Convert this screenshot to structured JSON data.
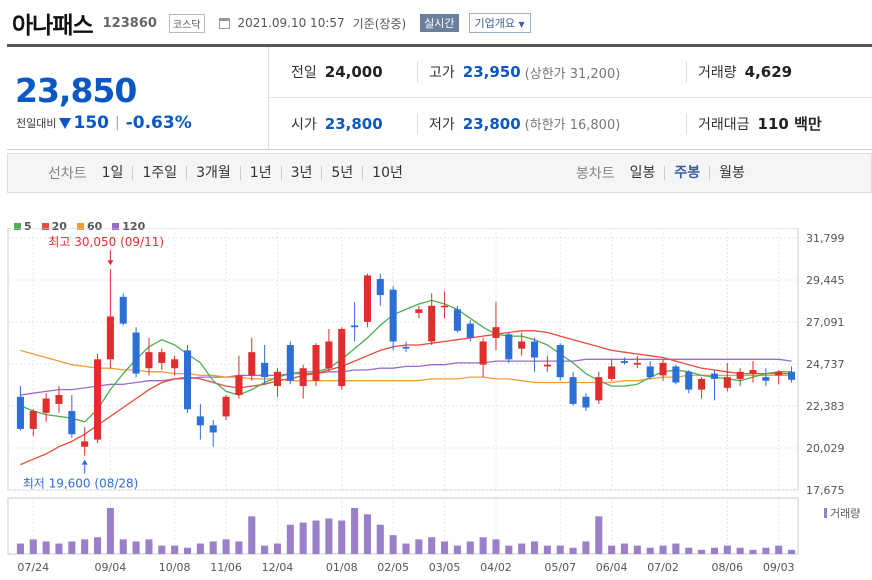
{
  "header": {
    "name": "아나패스",
    "code": "123860",
    "market": "코스닥",
    "datetime": "2021.09.10 10:57",
    "basis": "기준(장중)",
    "realtime_label": "실시간",
    "company_label": "기업개요"
  },
  "quote": {
    "price": "23,850",
    "change_label": "전일대비",
    "change": "150",
    "change_pct": "-0.63%",
    "prev_label": "전일",
    "prev": "24,000",
    "high_label": "고가",
    "high": "23,950",
    "upper_limit": "(상한가 31,200)",
    "volume_label": "거래량",
    "volume": "4,629",
    "open_label": "시가",
    "open": "23,800",
    "low_label": "저가",
    "low": "23,800",
    "lower_limit": "(하한가 16,800)",
    "amount_label": "거래대금",
    "amount": "110 백만"
  },
  "tabs": {
    "line_label": "선차트",
    "line": [
      "1일",
      "1주일",
      "3개월",
      "1년",
      "3년",
      "5년",
      "10년"
    ],
    "candle_label": "봉차트",
    "candle": [
      "일봉",
      "주봉",
      "월봉"
    ],
    "active_candle": 1
  },
  "legend": [
    {
      "name": "5",
      "color": "#4caf50"
    },
    {
      "name": "20",
      "color": "#e74c3c"
    },
    {
      "name": "60",
      "color": "#f39c3c"
    },
    {
      "name": "120",
      "color": "#9b6bc9"
    }
  ],
  "chart_data": {
    "type": "candlestick",
    "y_ticks": [
      17675,
      20029,
      22383,
      24737,
      27091,
      29445,
      31799
    ],
    "y_tick_labels": [
      "17,675",
      "20,029",
      "22,383",
      "24,737",
      "27,091",
      "29,445",
      "31,799"
    ],
    "ylim": [
      17675,
      31799
    ],
    "x_labels": [
      {
        "label": "07/24",
        "index": 1
      },
      {
        "label": "09/04",
        "index": 7
      },
      {
        "label": "10/08",
        "index": 12
      },
      {
        "label": "11/06",
        "index": 16
      },
      {
        "label": "12/04",
        "index": 20
      },
      {
        "label": "01/08",
        "index": 25
      },
      {
        "label": "02/05",
        "index": 29
      },
      {
        "label": "03/05",
        "index": 33
      },
      {
        "label": "04/02",
        "index": 37
      },
      {
        "label": "05/07",
        "index": 42
      },
      {
        "label": "06/04",
        "index": 46
      },
      {
        "label": "07/02",
        "index": 50
      },
      {
        "label": "08/06",
        "index": 55
      },
      {
        "label": "09/03",
        "index": 59
      }
    ],
    "annotations": {
      "max_label": "최고 30,050 (09/11)",
      "max_value": 30050,
      "max_index": 7,
      "min_label": "최저 19,600 (08/28)",
      "min_value": 19600,
      "min_index": 5
    },
    "volume_label": "거래량",
    "candles": [
      {
        "o": 22900,
        "h": 23500,
        "l": 21000,
        "c": 21100
      },
      {
        "o": 21100,
        "h": 22200,
        "l": 20700,
        "c": 22100
      },
      {
        "o": 22000,
        "h": 23100,
        "l": 21500,
        "c": 22800
      },
      {
        "o": 22500,
        "h": 23500,
        "l": 22000,
        "c": 23000
      },
      {
        "o": 22100,
        "h": 23000,
        "l": 20600,
        "c": 20800
      },
      {
        "o": 20100,
        "h": 21200,
        "l": 19600,
        "c": 20400
      },
      {
        "o": 20500,
        "h": 25300,
        "l": 20300,
        "c": 25000
      },
      {
        "o": 25000,
        "h": 30050,
        "l": 24500,
        "c": 27400
      },
      {
        "o": 28500,
        "h": 28700,
        "l": 26900,
        "c": 27000
      },
      {
        "o": 26500,
        "h": 26800,
        "l": 24000,
        "c": 24200
      },
      {
        "o": 24500,
        "h": 26200,
        "l": 24100,
        "c": 25400
      },
      {
        "o": 24800,
        "h": 25600,
        "l": 24400,
        "c": 25400
      },
      {
        "o": 24500,
        "h": 25200,
        "l": 24100,
        "c": 25000
      },
      {
        "o": 25500,
        "h": 25800,
        "l": 22000,
        "c": 22200
      },
      {
        "o": 21800,
        "h": 22500,
        "l": 20500,
        "c": 21300
      },
      {
        "o": 21300,
        "h": 21600,
        "l": 20100,
        "c": 20900
      },
      {
        "o": 21800,
        "h": 23000,
        "l": 21600,
        "c": 22900
      },
      {
        "o": 23000,
        "h": 25200,
        "l": 22800,
        "c": 24100
      },
      {
        "o": 24100,
        "h": 26200,
        "l": 23800,
        "c": 25400
      },
      {
        "o": 24800,
        "h": 25800,
        "l": 23600,
        "c": 24000
      },
      {
        "o": 23500,
        "h": 24500,
        "l": 22900,
        "c": 24300
      },
      {
        "o": 25800,
        "h": 26000,
        "l": 23600,
        "c": 23800
      },
      {
        "o": 23500,
        "h": 24700,
        "l": 22800,
        "c": 24500
      },
      {
        "o": 23800,
        "h": 25900,
        "l": 23500,
        "c": 25800
      },
      {
        "o": 24500,
        "h": 26700,
        "l": 24300,
        "c": 26000
      },
      {
        "o": 23500,
        "h": 26800,
        "l": 23300,
        "c": 26700
      },
      {
        "o": 26900,
        "h": 28200,
        "l": 26000,
        "c": 26800
      },
      {
        "o": 27100,
        "h": 29800,
        "l": 26800,
        "c": 29700
      },
      {
        "o": 29500,
        "h": 29800,
        "l": 28000,
        "c": 28600
      },
      {
        "o": 28900,
        "h": 29100,
        "l": 25500,
        "c": 26000
      },
      {
        "o": 25700,
        "h": 26000,
        "l": 25400,
        "c": 25600
      },
      {
        "o": 27600,
        "h": 28000,
        "l": 27300,
        "c": 27800
      },
      {
        "o": 26000,
        "h": 28700,
        "l": 25800,
        "c": 28000
      },
      {
        "o": 28000,
        "h": 28800,
        "l": 27300,
        "c": 28000
      },
      {
        "o": 27800,
        "h": 28000,
        "l": 26500,
        "c": 26600
      },
      {
        "o": 27000,
        "h": 27200,
        "l": 26000,
        "c": 26200
      },
      {
        "o": 24700,
        "h": 26200,
        "l": 24000,
        "c": 26000
      },
      {
        "o": 26200,
        "h": 28200,
        "l": 25500,
        "c": 26800
      },
      {
        "o": 26400,
        "h": 26500,
        "l": 24800,
        "c": 25000
      },
      {
        "o": 25600,
        "h": 26500,
        "l": 25200,
        "c": 26000
      },
      {
        "o": 26000,
        "h": 26200,
        "l": 24300,
        "c": 25100
      },
      {
        "o": 24600,
        "h": 25200,
        "l": 24300,
        "c": 24700
      },
      {
        "o": 25800,
        "h": 25900,
        "l": 23800,
        "c": 24000
      },
      {
        "o": 24000,
        "h": 24300,
        "l": 22400,
        "c": 22500
      },
      {
        "o": 22900,
        "h": 23100,
        "l": 22100,
        "c": 22300
      },
      {
        "o": 22700,
        "h": 24300,
        "l": 22500,
        "c": 24000
      },
      {
        "o": 23900,
        "h": 25000,
        "l": 23800,
        "c": 24600
      },
      {
        "o": 24900,
        "h": 25100,
        "l": 24700,
        "c": 24800
      },
      {
        "o": 24700,
        "h": 25200,
        "l": 24500,
        "c": 24800
      },
      {
        "o": 24600,
        "h": 24900,
        "l": 23900,
        "c": 24000
      },
      {
        "o": 24100,
        "h": 25000,
        "l": 23800,
        "c": 24800
      },
      {
        "o": 24600,
        "h": 24700,
        "l": 23600,
        "c": 23700
      },
      {
        "o": 24300,
        "h": 24400,
        "l": 23100,
        "c": 23300
      },
      {
        "o": 23300,
        "h": 24000,
        "l": 22800,
        "c": 23900
      },
      {
        "o": 24200,
        "h": 24400,
        "l": 22700,
        "c": 23900
      },
      {
        "o": 23400,
        "h": 24800,
        "l": 23200,
        "c": 24000
      },
      {
        "o": 23900,
        "h": 24500,
        "l": 23500,
        "c": 24300
      },
      {
        "o": 24200,
        "h": 24900,
        "l": 23700,
        "c": 24400
      },
      {
        "o": 24000,
        "h": 24500,
        "l": 23500,
        "c": 23800
      },
      {
        "o": 24100,
        "h": 24400,
        "l": 23600,
        "c": 24300
      },
      {
        "o": 24300,
        "h": 24600,
        "l": 23700,
        "c": 23850
      }
    ],
    "volumes": [
      10,
      14,
      12,
      10,
      12,
      14,
      16,
      44,
      14,
      12,
      14,
      8,
      8,
      6,
      10,
      12,
      14,
      12,
      36,
      8,
      10,
      28,
      30,
      32,
      34,
      32,
      44,
      38,
      28,
      18,
      10,
      14,
      16,
      12,
      8,
      12,
      16,
      14,
      8,
      10,
      12,
      8,
      8,
      6,
      12,
      36,
      8,
      10,
      8,
      6,
      8,
      10,
      6,
      4,
      6,
      8,
      6,
      4,
      6,
      8,
      4
    ],
    "ma5": [
      22400,
      22100,
      21900,
      21800,
      21700,
      21500,
      22200,
      23300,
      24200,
      25000,
      25700,
      26100,
      25800,
      25300,
      24800,
      23800,
      23200,
      23000,
      23300,
      23700,
      24000,
      24200,
      24300,
      24300,
      24500,
      25000,
      25600,
      26200,
      26900,
      27500,
      27800,
      28100,
      28300,
      28100,
      27800,
      27300,
      26800,
      26400,
      26300,
      26300,
      26100,
      25800,
      25300,
      24800,
      24200,
      23800,
      23500,
      23500,
      23600,
      24000,
      24300,
      24400,
      24300,
      24100,
      24000,
      23900,
      23800,
      24000,
      24200,
      24300,
      24300
    ],
    "ma20": [
      19100,
      19400,
      19700,
      20100,
      20400,
      20800,
      21300,
      21800,
      22300,
      22800,
      23300,
      23700,
      23900,
      24000,
      23900,
      23700,
      23500,
      23400,
      23500,
      23600,
      23800,
      23900,
      24100,
      24200,
      24400,
      24600,
      24900,
      25200,
      25500,
      25700,
      25800,
      25800,
      25900,
      26000,
      26100,
      26200,
      26300,
      26400,
      26500,
      26600,
      26600,
      26500,
      26300,
      26100,
      25900,
      25700,
      25500,
      25400,
      25300,
      25200,
      25100,
      24900,
      24700,
      24500,
      24400,
      24300,
      24200,
      24200,
      24200,
      24200,
      24200
    ],
    "ma60": [
      25500,
      25300,
      25100,
      24900,
      24700,
      24600,
      24500,
      24500,
      24400,
      24400,
      24300,
      24300,
      24200,
      24200,
      24100,
      24100,
      24000,
      24000,
      23900,
      23900,
      23900,
      23800,
      23800,
      23800,
      23800,
      23800,
      23800,
      23800,
      23800,
      23800,
      23800,
      23800,
      23900,
      23900,
      23900,
      24000,
      24000,
      23900,
      23900,
      23800,
      23700,
      23700,
      23700,
      23700,
      23700,
      23700,
      23700,
      23800,
      23800,
      23900,
      24000,
      24000,
      24100,
      24100,
      24100,
      24100,
      24100,
      24100,
      24100,
      24100,
      24100
    ],
    "ma120": [
      23000,
      23100,
      23200,
      23300,
      23300,
      23400,
      23500,
      23600,
      23600,
      23700,
      23800,
      23800,
      23900,
      23900,
      24000,
      24000,
      24000,
      24100,
      24100,
      24100,
      24100,
      24200,
      24200,
      24200,
      24300,
      24300,
      24400,
      24400,
      24500,
      24500,
      24600,
      24600,
      24700,
      24700,
      24800,
      24800,
      24800,
      24900,
      24900,
      24900,
      24900,
      24900,
      24900,
      24900,
      25000,
      25000,
      25000,
      25000,
      25000,
      25000,
      25000,
      25000,
      25000,
      25000,
      25000,
      25000,
      25000,
      25000,
      25000,
      25000,
      24900
    ]
  }
}
